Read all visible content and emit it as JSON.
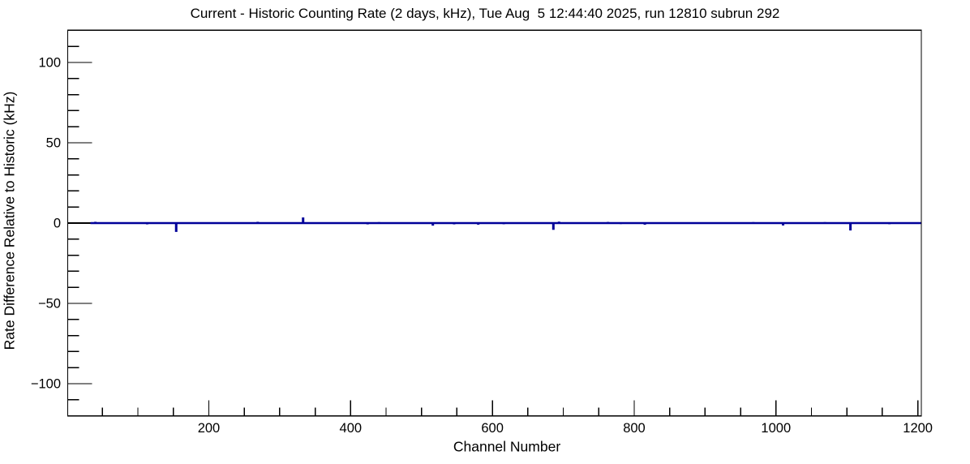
{
  "title": "Current - Historic Counting Rate (2 days, kHz), Tue Aug  5 12:44:40 2025, run 12810 subrun 292",
  "chart_data": {
    "type": "line",
    "subtype": "root-histogram-step",
    "title": "Current - Historic Counting Rate (2 days, kHz), Tue Aug  5 12:44:40 2025, run 12810 subrun 292",
    "xlabel": "Channel Number",
    "ylabel": "Rate Difference Relative to Historic (kHz)",
    "xlim": [
      1,
      1205
    ],
    "ylim": [
      -120,
      120
    ],
    "grid": false,
    "legend": false,
    "frame_color": "#000000",
    "line_color": "#000099",
    "zero_line_color": "#000000",
    "background_color": "#ffffff",
    "x_major_ticks": [
      {
        "value": 200,
        "label": "200"
      },
      {
        "value": 400,
        "label": "400"
      },
      {
        "value": 600,
        "label": "600"
      },
      {
        "value": 800,
        "label": "800"
      },
      {
        "value": 1000,
        "label": "1000"
      },
      {
        "value": 1200,
        "label": "1200"
      }
    ],
    "x_minor_step": 50,
    "y_major_ticks": [
      {
        "value": 100,
        "label": "100"
      },
      {
        "value": 50,
        "label": "50"
      },
      {
        "value": 0,
        "label": "0"
      },
      {
        "value": -50,
        "label": "−50"
      },
      {
        "value": -100,
        "label": "−100"
      }
    ],
    "y_minor_step": 10,
    "baseline_value": 0,
    "series_start_channel": 33,
    "series_end_channel": 1205,
    "spikes": [
      {
        "channel": 40,
        "value": 0.8
      },
      {
        "channel": 113,
        "value": -0.8
      },
      {
        "channel": 154,
        "value": -5.5
      },
      {
        "channel": 269,
        "value": 0.8
      },
      {
        "channel": 333,
        "value": 3.5
      },
      {
        "channel": 424,
        "value": -0.8
      },
      {
        "channel": 440,
        "value": 0.6
      },
      {
        "channel": 516,
        "value": -1.6
      },
      {
        "channel": 546,
        "value": -0.8
      },
      {
        "channel": 580,
        "value": -1.0
      },
      {
        "channel": 616,
        "value": -0.7
      },
      {
        "channel": 686,
        "value": -4.2
      },
      {
        "channel": 694,
        "value": 0.9
      },
      {
        "channel": 763,
        "value": 0.7
      },
      {
        "channel": 781,
        "value": -0.6
      },
      {
        "channel": 815,
        "value": -1.0
      },
      {
        "channel": 968,
        "value": 0.6
      },
      {
        "channel": 1010,
        "value": -1.5
      },
      {
        "channel": 1069,
        "value": 0.6
      },
      {
        "channel": 1105,
        "value": -4.6
      },
      {
        "channel": 1160,
        "value": -0.7
      }
    ]
  }
}
